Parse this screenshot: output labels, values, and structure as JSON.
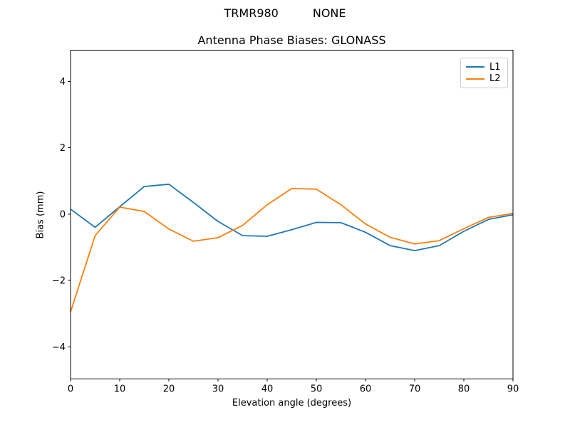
{
  "header": {
    "suptitle_left": "TRMR980",
    "suptitle_right": "NONE"
  },
  "chart_data": {
    "type": "line",
    "title": "Antenna Phase Biases: GLONASS",
    "xlabel": "Elevation angle (degrees)",
    "ylabel": "Bias (mm)",
    "xlim": [
      0,
      90
    ],
    "ylim": [
      -4.97,
      4.94
    ],
    "xticks": [
      0,
      10,
      20,
      30,
      40,
      50,
      60,
      70,
      80,
      90
    ],
    "yticks": [
      -4,
      -2,
      0,
      2,
      4
    ],
    "grid": false,
    "legend_position": "upper right",
    "x": [
      0,
      5,
      10,
      15,
      20,
      25,
      30,
      35,
      40,
      45,
      50,
      55,
      60,
      65,
      70,
      75,
      80,
      85,
      90
    ],
    "series": [
      {
        "name": "L1",
        "color": "#1f77b4",
        "values": [
          0.15,
          -0.4,
          0.22,
          0.83,
          0.9,
          0.35,
          -0.22,
          -0.65,
          -0.67,
          -0.47,
          -0.25,
          -0.26,
          -0.55,
          -0.95,
          -1.1,
          -0.95,
          -0.52,
          -0.16,
          -0.02
        ]
      },
      {
        "name": "L2",
        "color": "#ff7f0e",
        "values": [
          -2.95,
          -0.65,
          0.21,
          0.08,
          -0.45,
          -0.82,
          -0.71,
          -0.34,
          0.28,
          0.77,
          0.75,
          0.28,
          -0.3,
          -0.7,
          -0.9,
          -0.8,
          -0.44,
          -0.1,
          0.02
        ]
      }
    ]
  }
}
